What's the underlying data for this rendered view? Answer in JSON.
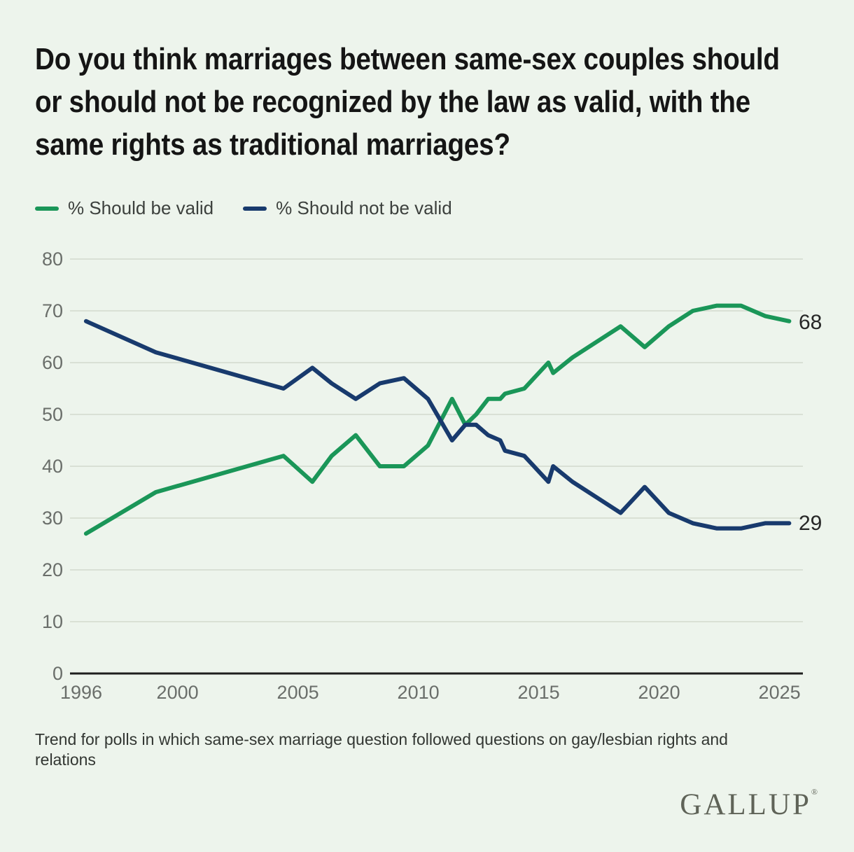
{
  "title": {
    "lines": [
      "Do you think marriages between same-sex couples should",
      "or should not be recognized by the law as valid, with the",
      "same rights as traditional marriages?"
    ]
  },
  "legend": [
    {
      "label": "% Should be valid",
      "color": "#1A9658"
    },
    {
      "label": "% Should not be valid",
      "color": "#183A6D"
    }
  ],
  "footnote": {
    "lines": [
      "Trend for polls in which same-sex marriage question followed questions on gay/lesbian rights and",
      "relations"
    ]
  },
  "logo": {
    "text": "GALLUP",
    "mark": "®"
  },
  "colors": {
    "background": "#EDF4EC",
    "grid": "#D9E0D5",
    "axis": "#1E1E1E",
    "tick_text": "#6A6E6A"
  },
  "chart_data": {
    "type": "line",
    "title": "Do you think marriages between same-sex couples should or should not be recognized by the law as valid, with the same rights as traditional marriages?",
    "xlabel": "",
    "ylabel": "",
    "grid": true,
    "legend_position": "top-left",
    "xlim": [
      1995.5,
      2026.2
    ],
    "ylim": [
      0,
      80
    ],
    "x_ticks": [
      1996,
      2000,
      2005,
      2010,
      2015,
      2020,
      2025
    ],
    "y_ticks": [
      0,
      10,
      20,
      30,
      40,
      50,
      60,
      70,
      80
    ],
    "end_labels": {
      "valid": "68",
      "not_valid": "29"
    },
    "series": [
      {
        "key": "valid",
        "name": "% Should be valid",
        "color": "#1A9658"
      },
      {
        "key": "not_valid",
        "name": "% Should not be valid",
        "color": "#183A6D"
      }
    ],
    "points": [
      {
        "year": 1996.2,
        "valid": 27,
        "not_valid": 68
      },
      {
        "year": 1999.1,
        "valid": 35,
        "not_valid": 62
      },
      {
        "year": 2004.4,
        "valid": 42,
        "not_valid": 55
      },
      {
        "year": 2005.6,
        "valid": 37,
        "not_valid": 59
      },
      {
        "year": 2006.4,
        "valid": 42,
        "not_valid": 56
      },
      {
        "year": 2007.4,
        "valid": 46,
        "not_valid": 53
      },
      {
        "year": 2008.4,
        "valid": 40,
        "not_valid": 56
      },
      {
        "year": 2009.4,
        "valid": 40,
        "not_valid": 57
      },
      {
        "year": 2010.4,
        "valid": 44,
        "not_valid": 53
      },
      {
        "year": 2011.4,
        "valid": 53,
        "not_valid": 45
      },
      {
        "year": 2011.95,
        "valid": 48,
        "not_valid": 48
      },
      {
        "year": 2012.4,
        "valid": 50,
        "not_valid": 48
      },
      {
        "year": 2012.9,
        "valid": 53,
        "not_valid": 46
      },
      {
        "year": 2013.4,
        "valid": 53,
        "not_valid": 45
      },
      {
        "year": 2013.6,
        "valid": 54,
        "not_valid": 43
      },
      {
        "year": 2014.4,
        "valid": 55,
        "not_valid": 42
      },
      {
        "year": 2015.4,
        "valid": 60,
        "not_valid": 37
      },
      {
        "year": 2015.6,
        "valid": 58,
        "not_valid": 40
      },
      {
        "year": 2016.4,
        "valid": 61,
        "not_valid": 37
      },
      {
        "year": 2017.4,
        "valid": 64,
        "not_valid": 34
      },
      {
        "year": 2018.4,
        "valid": 67,
        "not_valid": 31
      },
      {
        "year": 2019.4,
        "valid": 63,
        "not_valid": 36
      },
      {
        "year": 2020.4,
        "valid": 67,
        "not_valid": 31
      },
      {
        "year": 2021.4,
        "valid": 70,
        "not_valid": 29
      },
      {
        "year": 2022.4,
        "valid": 71,
        "not_valid": 28
      },
      {
        "year": 2023.4,
        "valid": 71,
        "not_valid": 28
      },
      {
        "year": 2024.4,
        "valid": 69,
        "not_valid": 29
      },
      {
        "year": 2025.4,
        "valid": 68,
        "not_valid": 29
      }
    ]
  }
}
